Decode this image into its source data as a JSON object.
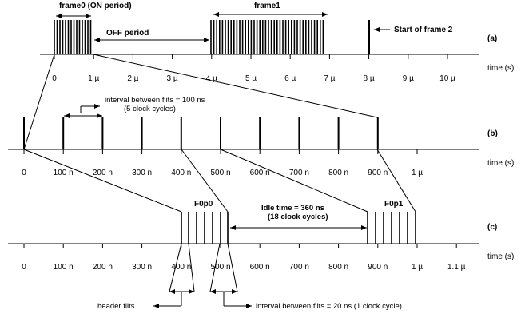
{
  "rows": [
    {
      "id": "a",
      "label": "(a)",
      "axis_unit_label": "time (s)",
      "ticks": [
        "0",
        "1 µ",
        "2 µ",
        "3 µ",
        "4 µ",
        "5 µ",
        "6 µ",
        "7 µ",
        "8 µ",
        "9 µ",
        "10 µ"
      ],
      "annotations": {
        "frame0": "frame0 (ON period)",
        "off_period": "OFF period",
        "frame1": "frame1",
        "start_frame2": "Start of frame 2"
      }
    },
    {
      "id": "b",
      "label": "(b)",
      "axis_unit_label": "time (s)",
      "ticks": [
        "0",
        "100 n",
        "200 n",
        "300 n",
        "400 n",
        "500 n",
        "600 n",
        "700 n",
        "800 n",
        "900 n",
        "1 µ"
      ],
      "annotations": {
        "interval_line1": "interval between flits = 100 ns",
        "interval_line2": "(5 clock cycles)"
      }
    },
    {
      "id": "c",
      "label": "(c)",
      "axis_unit_label": "time (s)",
      "ticks": [
        "0",
        "100 n",
        "200 n",
        "300 n",
        "400 n",
        "500 n",
        "600 n",
        "700 n",
        "800 n",
        "900 n",
        "1 µ",
        "1.1 µ"
      ],
      "annotations": {
        "packet0": "F0p0",
        "packet1": "F0p1",
        "idle_line1": "Idle time = 360 ns",
        "idle_line2": "(18 clock cycles)",
        "header_flits": "header flits",
        "interval_flits": "interval between flits = 20 ns (1 clock cycle)"
      }
    }
  ]
}
